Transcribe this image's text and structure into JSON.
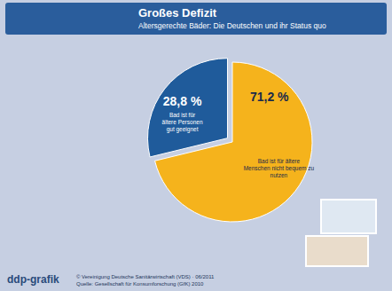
{
  "chart_data": {
    "type": "pie",
    "title": "Großes Defizit",
    "subtitle": "Altersgerechte Bäder: Die Deutschen und ihr Status quo",
    "categories": [
      "Bad ist für ältere Menschen nicht bequem zu nutzen",
      "Bad ist für ältere Personen gut geeignet"
    ],
    "values": [
      71.2,
      28.8
    ],
    "value_labels": [
      "71,2 %",
      "28,8 %"
    ],
    "colors": [
      "#f5b31c",
      "#1f5b9b"
    ],
    "data_labels": true,
    "logo": "ddp-grafik",
    "caption": "© Vereinigung Deutsche Sanitärwirtschaft (VDS) · 06/2011",
    "source": "Quelle: Gesellschaft für Konsumforschung (GfK) 2010"
  }
}
